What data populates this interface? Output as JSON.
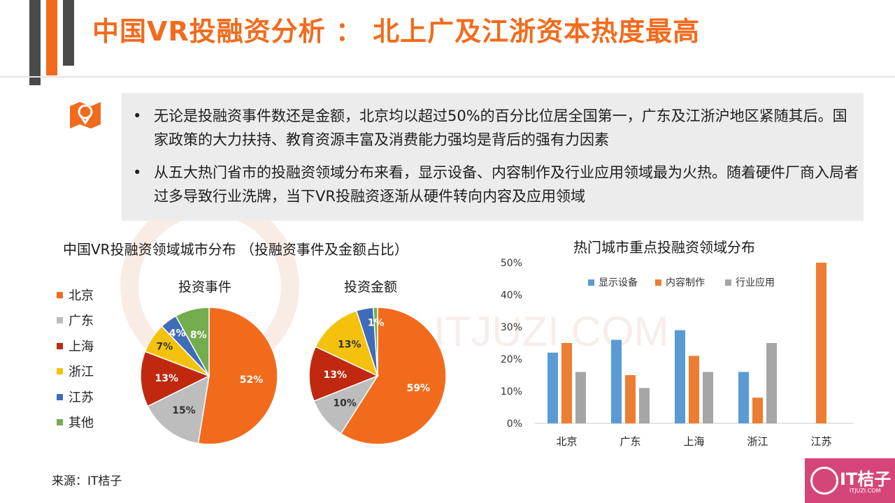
{
  "header": {
    "title": "中国VR投融资分析 ： 北上广及江浙资本热度最高"
  },
  "summary": {
    "bullet_char": "•",
    "bullets": [
      "无论是投融资事件数还是金额，北京均以超过50%的百分比位居全国第一，广东及江浙沪地区紧随其后。国家政策的大力扶持、教育资源丰富及消费能力强均是背后的强有力因素",
      "从五大热门省市的投融资领域分布来看，显示设备、内容制作及行业应用领域最为火热。随着硬件厂商入局者过多导致行业洗牌，当下VR投融资逐渐从硬件转向内容及应用领域"
    ]
  },
  "watermark": {
    "text": "ITJUZI.COM"
  },
  "chart_data": [
    {
      "type": "pie",
      "title": "中国VR投融资领域城市分布 （投融资事件及金额占比）",
      "subtitle": "投资事件",
      "categories": [
        "北京",
        "广东",
        "上海",
        "浙江",
        "江苏",
        "其他"
      ],
      "colors": [
        "#f26b1d",
        "#bdbdbd",
        "#c0280f",
        "#f4c20d",
        "#3f6cb8",
        "#74ad4d"
      ],
      "values": [
        52,
        15,
        13,
        7,
        4,
        8
      ],
      "labels": [
        "52%",
        "15%",
        "13%",
        "7%",
        "4%",
        "8%"
      ]
    },
    {
      "type": "pie",
      "subtitle": "投资金额",
      "categories": [
        "北京",
        "广东",
        "上海",
        "浙江",
        "江苏",
        "其他"
      ],
      "colors": [
        "#f26b1d",
        "#bdbdbd",
        "#c0280f",
        "#f4c20d",
        "#3f6cb8",
        "#74ad4d"
      ],
      "values": [
        59,
        10,
        13,
        13,
        4,
        1
      ],
      "labels": [
        "59%",
        "10%",
        "13%",
        "13%",
        "",
        "1%"
      ]
    },
    {
      "type": "bar",
      "title": "热门城市重点投融资领域分布",
      "categories": [
        "北京",
        "广东",
        "上海",
        "浙江",
        "江苏"
      ],
      "series": [
        {
          "name": "显示设备",
          "color": "#5b9bd5",
          "values": [
            22,
            26,
            29,
            16,
            0
          ]
        },
        {
          "name": "内容制作",
          "color": "#ed7d31",
          "values": [
            25,
            15,
            21,
            8,
            50
          ]
        },
        {
          "name": "行业应用",
          "color": "#a5a5a5",
          "values": [
            16,
            11,
            16,
            25,
            0
          ]
        }
      ],
      "ylim": [
        0,
        50
      ],
      "yticks": [
        "0%",
        "10%",
        "20%",
        "30%",
        "40%",
        "50%"
      ],
      "legend": "top"
    }
  ],
  "footer": {
    "source": "来源：IT桔子",
    "logo_text": "IT桔子",
    "logo_url": "ITJUZI.COM"
  }
}
